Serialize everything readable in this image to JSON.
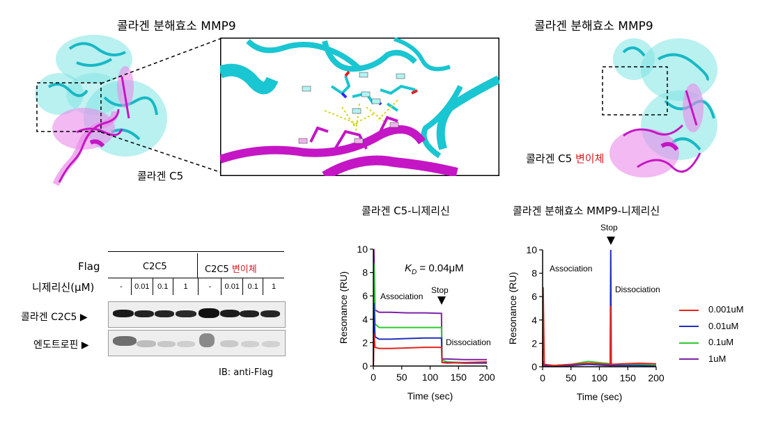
{
  "panel_a": {
    "left_title": "콜라겐 분해효소 MMP9",
    "left_label": "콜라겐 C5",
    "right_title": "콜라겐 분해효소 MMP9",
    "right_label_prefix": "콜라겐 C5 ",
    "right_label_variant": "변이체"
  },
  "western_blot": {
    "flag_label": "Flag",
    "group1": "C2C5",
    "group2_prefix": "C2C5 ",
    "group2_variant": "변이체",
    "conc_label": "니제리신(μM)",
    "concentrations": [
      "-",
      "0.01",
      "0.1",
      "1",
      "-",
      "0.01",
      "0.1",
      "1"
    ],
    "row1_label": "콜라겐 C2C5 ▶",
    "row2_label": "엔도트로핀 ▶",
    "ib_label": "IB: anti-Flag",
    "colors": {
      "band": "#1a1a1a",
      "band_faint": "#b8b8b8"
    }
  },
  "spr_left": {
    "title": "콜라겐 C5-니제리신",
    "kd_label": "K",
    "kd_sub": "D",
    "kd_value": " = 0.04μM",
    "association": "Association",
    "stop": "Stop",
    "dissociation": "Dissociation",
    "ylabel": "Resonance (RU)",
    "xlabel": "Time (sec)",
    "yticks": [
      "0",
      "2",
      "4",
      "6",
      "8",
      "10"
    ],
    "xticks": [
      "0",
      "50",
      "100",
      "150",
      "200"
    ]
  },
  "spr_right": {
    "title": "콜라겐 분해효소 MMP9-니제리신",
    "association": "Association",
    "stop": "Stop",
    "dissociation": "Dissociation",
    "ylabel": "Resonance (RU)",
    "xlabel": "Time (sec)",
    "yticks": [
      "0",
      "2",
      "4",
      "6",
      "8",
      "10"
    ],
    "xticks": [
      "0",
      "50",
      "100",
      "150",
      "200"
    ]
  },
  "legend": [
    {
      "name": "0.001uM",
      "color": "#e3241c"
    },
    {
      "name": "0.01uM",
      "color": "#1f2fbf"
    },
    {
      "name": "0.1uM",
      "color": "#2ec82e"
    },
    {
      "name": "1uM",
      "color": "#7b22a8"
    }
  ],
  "chart_data": [
    {
      "type": "line",
      "title": "콜라겐 C5-니제리신",
      "xlabel": "Time (sec)",
      "ylabel": "Resonance (RU)",
      "xlim": [
        0,
        200
      ],
      "ylim": [
        0,
        10
      ],
      "series": [
        {
          "name": "0.001uM",
          "x": [
            0,
            1,
            3,
            10,
            30,
            60,
            90,
            120,
            121,
            130,
            160,
            200
          ],
          "y": [
            0,
            2.8,
            1.6,
            1.5,
            1.5,
            1.55,
            1.6,
            1.6,
            0.3,
            0.25,
            0.3,
            0.35
          ]
        },
        {
          "name": "0.01uM",
          "x": [
            0,
            1,
            3,
            10,
            30,
            60,
            90,
            120,
            121,
            130,
            160,
            200
          ],
          "y": [
            0,
            5.4,
            2.5,
            2.3,
            2.3,
            2.35,
            2.4,
            2.4,
            0.3,
            0.3,
            0.25,
            0.25
          ]
        },
        {
          "name": "0.1uM",
          "x": [
            0,
            1,
            3,
            10,
            30,
            60,
            90,
            120,
            121,
            130,
            160,
            200
          ],
          "y": [
            0,
            8.8,
            3.6,
            3.3,
            3.3,
            3.3,
            3.3,
            3.3,
            0.5,
            0.35,
            0.3,
            0.3
          ]
        },
        {
          "name": "1uM",
          "x": [
            0,
            1,
            3,
            10,
            30,
            60,
            90,
            120,
            121,
            130,
            160,
            200
          ],
          "y": [
            0,
            10,
            4.8,
            4.6,
            4.6,
            4.55,
            4.55,
            4.5,
            0.6,
            0.6,
            0.55,
            0.55
          ]
        }
      ]
    },
    {
      "type": "line",
      "title": "콜라겐 분해효소 MMP9-니제리신",
      "xlabel": "Time (sec)",
      "ylabel": "Resonance (RU)",
      "xlim": [
        0,
        200
      ],
      "ylim": [
        0,
        10
      ],
      "series": [
        {
          "name": "0.001uM",
          "x": [
            0,
            1,
            3,
            20,
            50,
            80,
            119,
            120,
            121,
            140,
            170,
            200
          ],
          "y": [
            0,
            6.8,
            0.2,
            0.1,
            0.2,
            0.3,
            0.2,
            5.2,
            0.2,
            0.25,
            0.3,
            0.25
          ]
        },
        {
          "name": "0.01uM",
          "x": [
            0,
            1,
            3,
            20,
            50,
            80,
            119,
            120,
            121,
            140,
            170,
            200
          ],
          "y": [
            0,
            0.5,
            0.1,
            0.05,
            0.1,
            0.2,
            0.1,
            10,
            0.1,
            0.1,
            0.1,
            0.05
          ]
        },
        {
          "name": "0.1uM",
          "x": [
            0,
            1,
            3,
            20,
            50,
            80,
            119,
            120,
            121,
            140,
            170,
            200
          ],
          "y": [
            0,
            0.4,
            0.1,
            0.1,
            0.2,
            0.45,
            0.25,
            0.6,
            0.2,
            0.2,
            0.2,
            0.15
          ]
        },
        {
          "name": "1uM",
          "x": [
            0,
            1,
            3,
            20,
            50,
            80,
            119,
            120,
            121,
            140,
            170,
            200
          ],
          "y": [
            0,
            0.3,
            0.1,
            0.05,
            0.15,
            0.3,
            0.2,
            0.4,
            0.15,
            0.2,
            0.2,
            0.2
          ]
        }
      ]
    }
  ]
}
